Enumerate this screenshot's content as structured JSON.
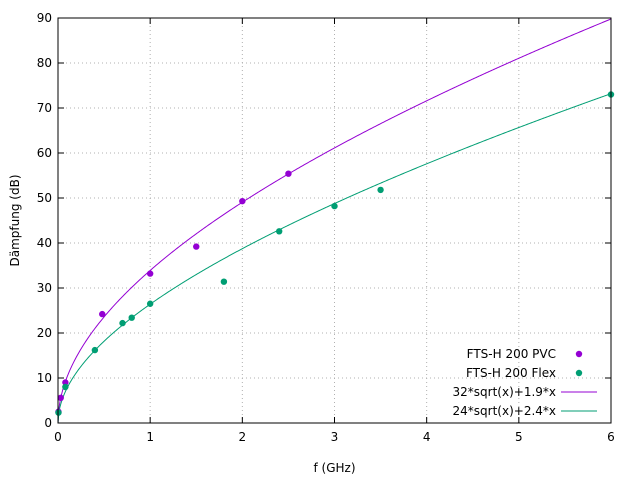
{
  "chart_data": {
    "type": "scatter",
    "xlabel": "f (GHz)",
    "ylabel": "Dämpfung (dB)",
    "xlim": [
      0,
      6
    ],
    "ylim": [
      0,
      90
    ],
    "xticks": [
      0,
      1,
      2,
      3,
      4,
      5,
      6
    ],
    "yticks": [
      0,
      10,
      20,
      30,
      40,
      50,
      60,
      70,
      80,
      90
    ],
    "grid": true,
    "legend_position": "bottom-right",
    "series": [
      {
        "name": "FTS-H 200 PVC",
        "kind": "points",
        "color": "#9400d3",
        "x": [
          0.005,
          0.03,
          0.08,
          0.48,
          1.0,
          1.5,
          2.0,
          2.5
        ],
        "y": [
          2.5,
          5.6,
          9.0,
          24.2,
          33.2,
          39.2,
          49.3,
          55.4
        ]
      },
      {
        "name": "FTS-H 200 Flex",
        "kind": "points",
        "color": "#009e73",
        "x": [
          0.005,
          0.08,
          0.4,
          0.7,
          0.8,
          1.0,
          1.8,
          2.4,
          3.0,
          3.5,
          6.0
        ],
        "y": [
          2.3,
          8.0,
          16.2,
          22.2,
          23.4,
          26.5,
          31.4,
          42.6,
          48.2,
          51.8,
          73.0
        ]
      },
      {
        "name": "32*sqrt(x)+1.9*x",
        "kind": "line",
        "color": "#9400d3",
        "a": 32,
        "b": 1.9
      },
      {
        "name": "24*sqrt(x)+2.4*x",
        "kind": "line",
        "color": "#009e73",
        "a": 24,
        "b": 2.4
      }
    ]
  }
}
